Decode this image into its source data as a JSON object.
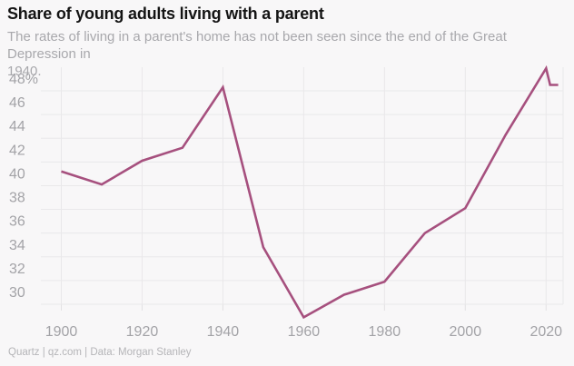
{
  "header": {
    "title": "Share of young adults living with a parent",
    "subtitle_line1": "The rates of living in a parent's home has not been seen since the end of the Great Depression in",
    "subtitle_line2": "1940."
  },
  "footer": {
    "credit": "Quartz | qz.com | Data: Morgan Stanley"
  },
  "colors": {
    "background": "#f8f7f8",
    "line": "#a6507e",
    "grid": "#e9e8ea",
    "tick": "#e2e1e3",
    "axis_text": "#a3a3a7",
    "title_text": "#141414",
    "subtitle_text": "#a8a8ac",
    "footer_text": "#b5b5b8"
  },
  "chart_data": {
    "type": "line",
    "title": "Share of young adults living with a parent",
    "series_name": "Share of young adults living with a parent (%)",
    "x": [
      1900,
      1910,
      1920,
      1930,
      1940,
      1950,
      1960,
      1970,
      1980,
      1990,
      2000,
      2010,
      2020,
      2021,
      2023
    ],
    "values": [
      41.2,
      40.1,
      42.1,
      43.2,
      48.3,
      34.8,
      28.9,
      30.8,
      31.9,
      36.0,
      38.1,
      44.3,
      49.9,
      48.5,
      48.5
    ],
    "xlabel": "",
    "ylabel": "",
    "xlim": [
      1900,
      2024
    ],
    "ylim": [
      28.5,
      50.5
    ],
    "x_ticks": [
      1900,
      1920,
      1940,
      1960,
      1980,
      2000,
      2020
    ],
    "x_tick_labels": [
      "1900",
      "1920",
      "1940",
      "1960",
      "1980",
      "2000",
      "2020"
    ],
    "y_ticks": [
      30,
      32,
      34,
      36,
      38,
      40,
      42,
      44,
      46,
      48
    ],
    "y_tick_labels": [
      "30",
      "32",
      "34",
      "36",
      "38",
      "40",
      "42",
      "44",
      "46",
      "48%"
    ],
    "grid": true,
    "legend": false
  }
}
